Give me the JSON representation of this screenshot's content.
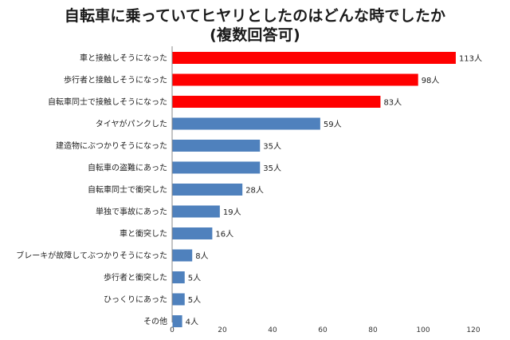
{
  "chart_data": {
    "type": "bar",
    "orientation": "horizontal",
    "title_line1": "自転車に乗っていてヒヤリとしたのはどんな時でしたか",
    "title_line2": "(複数回答可)",
    "categories": [
      "車と接触しそうになった",
      "歩行者と接触しそうになった",
      "自転車同士で接触しそうになった",
      "タイヤがパンクした",
      "建造物にぶつかりそうになった",
      "自転車の盗難にあった",
      "自転車同士で衝突した",
      "単独で事故にあった",
      "車と衝突した",
      "ブレーキが故障してぶつかりそうになった",
      "歩行者と衝突した",
      "ひっくりにあった",
      "その他"
    ],
    "values": [
      113,
      98,
      83,
      59,
      35,
      35,
      28,
      19,
      16,
      8,
      5,
      5,
      4
    ],
    "value_labels": [
      "113人",
      "98人",
      "83人",
      "59人",
      "35人",
      "35人",
      "28人",
      "19人",
      "16人",
      "8人",
      "5人",
      "5人",
      "4人"
    ],
    "bar_colors": [
      "#ff0000",
      "#ff0000",
      "#ff0000",
      "#4f81bd",
      "#4f81bd",
      "#4f81bd",
      "#4f81bd",
      "#4f81bd",
      "#4f81bd",
      "#4f81bd",
      "#4f81bd",
      "#4f81bd",
      "#4f81bd"
    ],
    "xlim": [
      0,
      120
    ],
    "xticks": [
      0,
      20,
      40,
      60,
      80,
      100,
      120
    ],
    "xlabel": "",
    "ylabel": "",
    "grid": false,
    "legend": "none"
  }
}
